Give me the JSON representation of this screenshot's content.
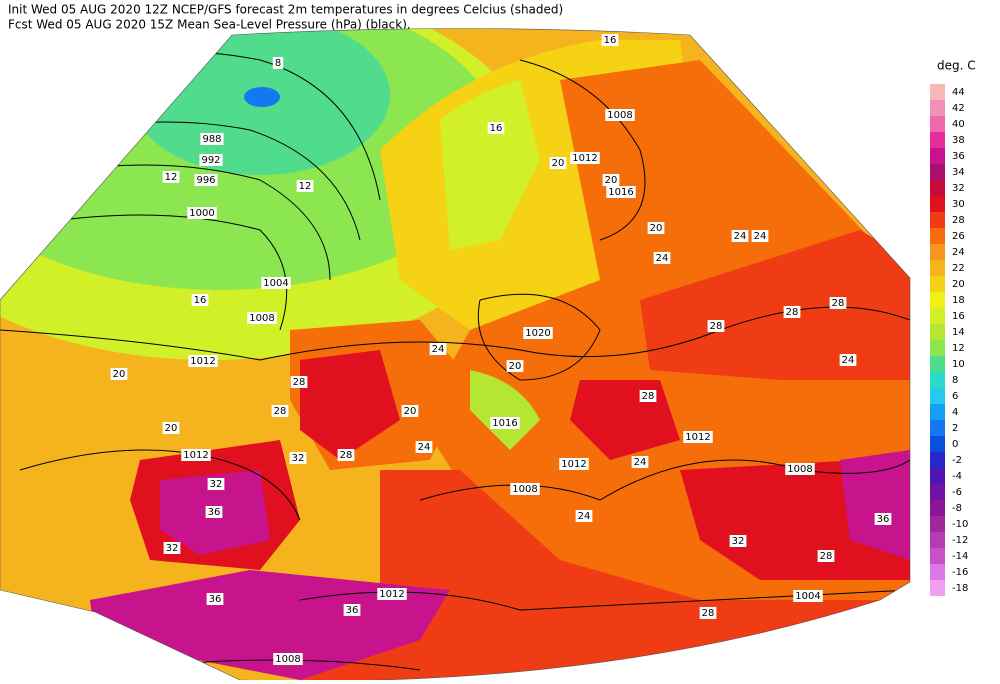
{
  "header": {
    "line1": "Init  Wed 05 AUG 2020 12Z  NCEP/GFS forecast 2m temperatures in degrees Celcius (shaded)",
    "line2": "Fcst Wed 05 AUG 2020 15Z  Mean Sea-Level Pressure (hPa) (black)."
  },
  "colorbar": {
    "title": "deg. C",
    "levels": [
      44,
      42,
      40,
      38,
      36,
      34,
      32,
      30,
      28,
      26,
      24,
      22,
      20,
      18,
      16,
      14,
      12,
      10,
      8,
      6,
      4,
      2,
      0,
      -2,
      -4,
      -6,
      -8,
      -10,
      -12,
      -14,
      -16,
      -18
    ],
    "colors": [
      "#f7b8b8",
      "#f291b8",
      "#ee6aa8",
      "#e62c9a",
      "#c8148c",
      "#a8106e",
      "#c80a3c",
      "#e1101e",
      "#f03c14",
      "#f56e0a",
      "#f5961e",
      "#f5b41e",
      "#f5d214",
      "#f0f014",
      "#d2f028",
      "#b4e632",
      "#8ce650",
      "#50dc8c",
      "#28dcc8",
      "#28c8f0",
      "#14a0f0",
      "#1478f0",
      "#0a50dc",
      "#2828c8",
      "#5014b4",
      "#6e14a0",
      "#8c1496",
      "#a0289c",
      "#b43cb4",
      "#c850c8",
      "#dc78e6",
      "#f0a0f0"
    ]
  },
  "map": {
    "isobar_labels": [
      988,
      992,
      996,
      1000,
      1004,
      1008,
      1012,
      1012,
      1008,
      1012,
      1016,
      1020,
      1016,
      1012,
      1012,
      1008,
      1008,
      1004,
      1012,
      1008
    ],
    "temperature_labels": [
      16,
      8,
      16,
      20,
      12,
      20,
      12,
      20,
      24,
      24,
      16,
      24,
      20,
      24,
      28,
      28,
      28,
      24,
      20,
      28,
      20,
      28,
      28,
      20,
      32,
      28,
      24,
      32,
      36,
      32,
      36,
      36,
      24,
      32,
      28,
      28,
      36,
      24
    ]
  }
}
